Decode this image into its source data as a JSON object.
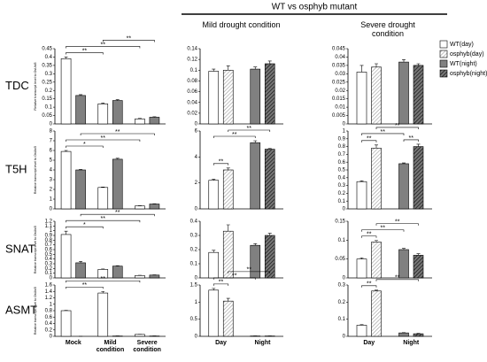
{
  "header": {
    "title": "WT vs osphyb mutant",
    "columns": [
      "Mild drought condition",
      "Severe drought condition"
    ]
  },
  "chart_data": [
    {
      "type": "bar",
      "title": "TDC",
      "ylabel": "Relative transcript level to OsUbi5",
      "ylim": [
        0,
        0.45
      ],
      "yticks": [
        0,
        0.05,
        0.1,
        0.15,
        0.2,
        0.25,
        0.3,
        0.35,
        0.4,
        0.45
      ],
      "series": [
        {
          "color": "#ffffff",
          "values": [
            0.39,
            0.12,
            0.03
          ],
          "errors": [
            0.01,
            0.005,
            0.003
          ]
        },
        {
          "color": "#808080",
          "values": [
            0.17,
            0.14,
            0.04
          ],
          "errors": [
            0.005,
            0.005,
            0.003
          ]
        }
      ],
      "brackets": [
        {
          "text": "**",
          "bars": [
            0,
            2
          ]
        },
        {
          "text": "**",
          "bars": [
            0,
            4
          ]
        },
        {
          "text": "**",
          "bars": [
            2,
            5
          ]
        }
      ]
    },
    {
      "type": "bar",
      "ylim": [
        0,
        0.14
      ],
      "yticks": [
        0,
        0.02,
        0.04,
        0.06,
        0.08,
        0.1,
        0.12,
        0.14
      ],
      "series": [
        {
          "name": "WT(day)",
          "color": "#ffffff",
          "values": [
            0.098,
            null
          ],
          "errors": [
            0.004,
            null
          ]
        },
        {
          "name": "osphyb(day)",
          "color": "#d0d0d0",
          "hatch": true,
          "values": [
            0.1,
            null
          ],
          "errors": [
            0.008,
            null
          ]
        },
        {
          "name": "WT(night)",
          "color": "#808080",
          "values": [
            null,
            0.102
          ],
          "errors": [
            null,
            0.004
          ]
        },
        {
          "name": "osphyb(night)",
          "color": "#404040",
          "hatch": true,
          "values": [
            null,
            0.112
          ],
          "errors": [
            null,
            0.005
          ]
        }
      ]
    },
    {
      "type": "bar",
      "ylim": [
        0,
        0.045
      ],
      "yticks": [
        0,
        0.005,
        0.01,
        0.015,
        0.02,
        0.025,
        0.03,
        0.035,
        0.04,
        0.045
      ],
      "series": [
        {
          "color": "#ffffff",
          "values": [
            0.031,
            null
          ],
          "errors": [
            0.004,
            null
          ]
        },
        {
          "color": "#d0d0d0",
          "hatch": true,
          "values": [
            0.034,
            null
          ],
          "errors": [
            0.002,
            null
          ]
        },
        {
          "color": "#808080",
          "values": [
            null,
            0.037
          ],
          "errors": [
            null,
            0.0015
          ]
        },
        {
          "color": "#404040",
          "hatch": true,
          "values": [
            null,
            0.035
          ],
          "errors": [
            null,
            0.001
          ]
        }
      ]
    },
    {
      "type": "bar",
      "title": "T5H",
      "ylabel": "Relative transcript level to OsUbi5",
      "ylim": [
        0,
        8
      ],
      "yticks": [
        0,
        1,
        2,
        3,
        4,
        5,
        6,
        7,
        8
      ],
      "series": [
        {
          "color": "#ffffff",
          "values": [
            5.9,
            2.2,
            0.3
          ],
          "errors": [
            0.1,
            0.05,
            0.02
          ]
        },
        {
          "color": "#808080",
          "values": [
            4.0,
            5.1,
            0.5
          ],
          "errors": [
            0.05,
            0.1,
            0.03
          ]
        }
      ],
      "brackets": [
        {
          "text": "*",
          "bars": [
            0,
            2
          ]
        },
        {
          "text": "**",
          "bars": [
            0,
            4
          ]
        },
        {
          "text": "**",
          "bars": [
            1,
            5
          ]
        }
      ]
    },
    {
      "type": "bar",
      "ylim": [
        0,
        6
      ],
      "yticks": [
        0,
        2,
        4,
        6
      ],
      "series": [
        {
          "color": "#ffffff",
          "values": [
            2.2,
            null
          ],
          "errors": [
            0.08,
            null
          ]
        },
        {
          "color": "#d0d0d0",
          "hatch": true,
          "values": [
            3.0,
            null
          ],
          "errors": [
            0.15,
            null
          ]
        },
        {
          "color": "#808080",
          "values": [
            null,
            5.1
          ],
          "errors": [
            null,
            0.15
          ]
        },
        {
          "color": "#404040",
          "hatch": true,
          "values": [
            null,
            4.6
          ],
          "errors": [
            null,
            0.05
          ]
        }
      ],
      "brackets": [
        {
          "text": "**",
          "bars": [
            0,
            1
          ]
        },
        {
          "text": "**",
          "bars": [
            0,
            2
          ]
        },
        {
          "text": "**",
          "bars": [
            1,
            3
          ]
        }
      ]
    },
    {
      "type": "bar",
      "ylim": [
        0,
        1
      ],
      "yticks": [
        0,
        0.1,
        0.2,
        0.3,
        0.4,
        0.5,
        0.6,
        0.7,
        0.8,
        0.9,
        1
      ],
      "series": [
        {
          "color": "#ffffff",
          "values": [
            0.35,
            null
          ],
          "errors": [
            0.01,
            null
          ]
        },
        {
          "color": "#d0d0d0",
          "hatch": true,
          "values": [
            0.78,
            null
          ],
          "errors": [
            0.04,
            null
          ]
        },
        {
          "color": "#808080",
          "values": [
            null,
            0.58
          ],
          "errors": [
            null,
            0.01
          ]
        },
        {
          "color": "#404040",
          "hatch": true,
          "values": [
            null,
            0.8
          ],
          "errors": [
            null,
            0.03
          ]
        }
      ],
      "brackets": [
        {
          "text": "**",
          "bars": [
            0,
            1
          ]
        },
        {
          "text": "**",
          "bars": [
            2,
            3
          ]
        },
        {
          "text": "**",
          "bars": [
            0,
            2
          ]
        },
        {
          "text": "**",
          "bars": [
            1,
            3
          ]
        }
      ]
    },
    {
      "type": "bar",
      "title": "SNAT",
      "ylabel": "Relative transcript level to OsUbi5",
      "ylim": [
        0,
        1.2
      ],
      "yticks": [
        0,
        0.1,
        0.2,
        0.3,
        0.4,
        0.5,
        0.6,
        0.7,
        0.8,
        0.9,
        1,
        1.1,
        1.2
      ],
      "series": [
        {
          "color": "#ffffff",
          "values": [
            0.92,
            0.18,
            0.05
          ],
          "errors": [
            0.07,
            0.01,
            0.005
          ]
        },
        {
          "color": "#808080",
          "values": [
            0.32,
            0.25,
            0.06
          ],
          "errors": [
            0.03,
            0.01,
            0.005
          ]
        }
      ],
      "brackets": [
        {
          "text": "*",
          "bars": [
            0,
            2
          ]
        },
        {
          "text": "**",
          "bars": [
            0,
            4
          ]
        },
        {
          "text": "**",
          "bars": [
            1,
            5
          ]
        }
      ]
    },
    {
      "type": "bar",
      "ylim": [
        0,
        0.4
      ],
      "yticks": [
        0,
        0.1,
        0.2,
        0.3,
        0.4
      ],
      "series": [
        {
          "color": "#ffffff",
          "values": [
            0.18,
            null
          ],
          "errors": [
            0.015,
            null
          ]
        },
        {
          "color": "#d0d0d0",
          "hatch": true,
          "values": [
            0.33,
            null
          ],
          "errors": [
            0.045,
            null
          ]
        },
        {
          "color": "#808080",
          "values": [
            null,
            0.23
          ],
          "errors": [
            null,
            0.012
          ]
        },
        {
          "color": "#404040",
          "hatch": true,
          "values": [
            null,
            0.3
          ],
          "errors": [
            null,
            0.015
          ]
        }
      ]
    },
    {
      "type": "bar",
      "ylim": [
        0,
        0.15
      ],
      "yticks": [
        0,
        0.05,
        0.1,
        0.15
      ],
      "series": [
        {
          "color": "#ffffff",
          "values": [
            0.05,
            null
          ],
          "errors": [
            0.003,
            null
          ]
        },
        {
          "color": "#d0d0d0",
          "hatch": true,
          "values": [
            0.095,
            null
          ],
          "errors": [
            0.004,
            null
          ]
        },
        {
          "color": "#808080",
          "values": [
            null,
            0.075
          ],
          "errors": [
            null,
            0.003
          ]
        },
        {
          "color": "#404040",
          "hatch": true,
          "values": [
            null,
            0.06
          ],
          "errors": [
            null,
            0.004
          ]
        }
      ],
      "brackets": [
        {
          "text": "**",
          "bars": [
            0,
            1
          ]
        },
        {
          "text": "**",
          "bars": [
            0,
            2
          ]
        },
        {
          "text": "**",
          "bars": [
            1,
            3
          ]
        }
      ]
    },
    {
      "type": "bar",
      "title": "ASMT",
      "ylabel": "Relative transcript level to OsUbi5",
      "ylim": [
        0,
        1.6
      ],
      "yticks": [
        0,
        0.2,
        0.4,
        0.6,
        0.8,
        1,
        1.2,
        1.4,
        1.6
      ],
      "categories": [
        "Mock",
        "Mild condition",
        "Severe condition"
      ],
      "series": [
        {
          "color": "#ffffff",
          "values": [
            0.8,
            1.35,
            0.06
          ],
          "errors": [
            0.01,
            0.05,
            0.005
          ]
        },
        {
          "color": "#808080",
          "values": [
            0,
            0.01,
            0.01
          ],
          "errors": [
            0,
            0.002,
            0.002
          ]
        }
      ],
      "brackets": [
        {
          "text": "**",
          "bars": [
            0,
            2
          ]
        },
        {
          "text": "**",
          "bars": [
            0,
            4
          ]
        }
      ]
    },
    {
      "type": "bar",
      "ylim": [
        0,
        1.5
      ],
      "yticks": [
        0,
        0.5,
        1,
        1.5
      ],
      "categories": [
        "Day",
        "Night"
      ],
      "series": [
        {
          "color": "#ffffff",
          "values": [
            1.35,
            null
          ],
          "errors": [
            0.05,
            null
          ]
        },
        {
          "color": "#d0d0d0",
          "hatch": true,
          "values": [
            1.03,
            null
          ],
          "errors": [
            0.08,
            null
          ]
        },
        {
          "color": "#808080",
          "values": [
            null,
            0.01
          ],
          "errors": [
            null,
            0.002
          ]
        },
        {
          "color": "#404040",
          "hatch": true,
          "values": [
            null,
            0.01
          ],
          "errors": [
            null,
            0.002
          ]
        }
      ],
      "brackets": [
        {
          "text": "**",
          "bars": [
            0,
            1
          ]
        },
        {
          "text": "**",
          "bars": [
            0,
            2
          ]
        },
        {
          "text": "**",
          "bars": [
            1,
            3
          ]
        }
      ]
    },
    {
      "type": "bar",
      "ylim": [
        0,
        0.3
      ],
      "yticks": [
        0,
        0.1,
        0.2,
        0.3
      ],
      "categories": [
        "Day",
        "Night"
      ],
      "series": [
        {
          "color": "#ffffff",
          "values": [
            0.065,
            null
          ],
          "errors": [
            0.003,
            null
          ]
        },
        {
          "color": "#d0d0d0",
          "hatch": true,
          "values": [
            0.265,
            null
          ],
          "errors": [
            0.005,
            null
          ]
        },
        {
          "color": "#808080",
          "values": [
            null,
            0.02
          ],
          "errors": [
            null,
            0.002
          ]
        },
        {
          "color": "#404040",
          "hatch": true,
          "values": [
            null,
            0.015
          ],
          "errors": [
            null,
            0.002
          ]
        }
      ],
      "brackets": [
        {
          "text": "**",
          "bars": [
            0,
            1
          ]
        },
        {
          "text": "**",
          "bars": [
            1,
            3
          ]
        }
      ]
    }
  ]
}
